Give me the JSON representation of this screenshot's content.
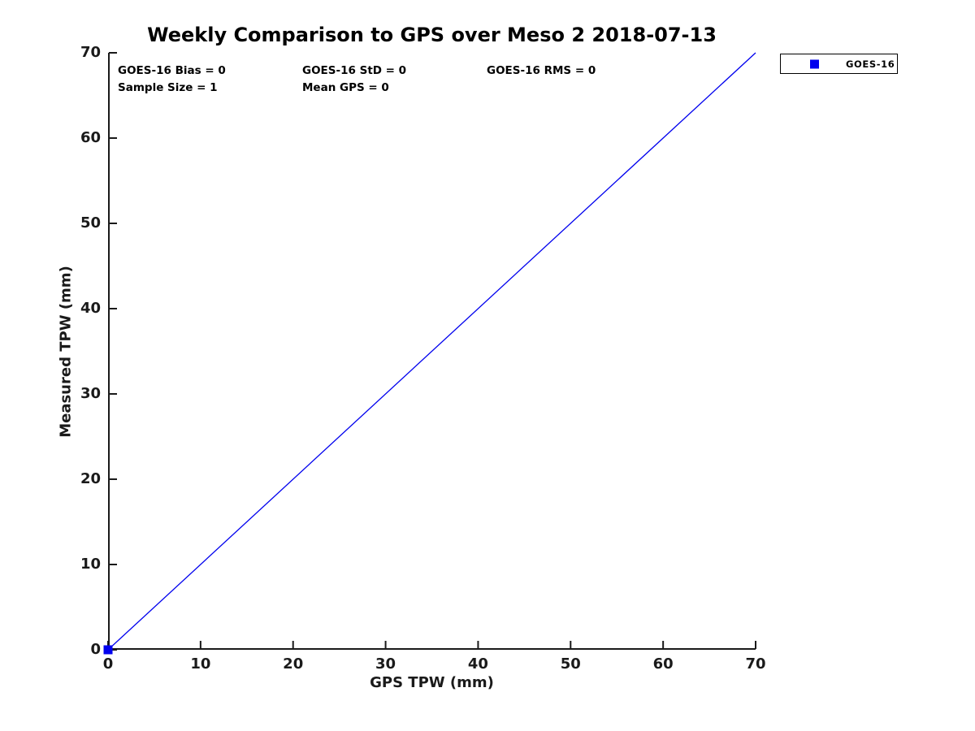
{
  "chart_data": {
    "type": "scatter",
    "title": "Weekly Comparison to GPS over Meso 2 2018-07-13",
    "xlabel": "GPS TPW (mm)",
    "ylabel": "Measured TPW (mm)",
    "xlim": [
      0,
      70
    ],
    "ylim": [
      0,
      70
    ],
    "xticks": [
      0,
      10,
      20,
      30,
      40,
      50,
      60,
      70
    ],
    "yticks": [
      0,
      10,
      20,
      30,
      40,
      50,
      60,
      70
    ],
    "grid": false,
    "axis_color": "#1a1a1a",
    "identity_line": {
      "x": [
        0,
        70
      ],
      "y": [
        0,
        70
      ],
      "color": "#0000ee",
      "width": 1.3,
      "style": "solid"
    },
    "series": [
      {
        "name": "GOES-16",
        "marker": "square",
        "color": "#0000ee",
        "marker_size": 11,
        "points": [
          {
            "x": 0,
            "y": 0
          }
        ]
      }
    ],
    "annotations": [
      {
        "text": "GOES-16 Bias = 0",
        "row": 0,
        "col": 0
      },
      {
        "text": "GOES-16 StD = 0",
        "row": 0,
        "col": 1
      },
      {
        "text": "GOES-16 RMS = 0",
        "row": 0,
        "col": 2
      },
      {
        "text": "Sample Size = 1",
        "row": 1,
        "col": 0
      },
      {
        "text": "Mean GPS = 0",
        "row": 1,
        "col": 1
      }
    ],
    "legend": {
      "position": "outside-top-right",
      "entries": [
        {
          "label": "GOES-16",
          "marker": "square",
          "color": "#0000ee"
        }
      ]
    }
  },
  "colors": {
    "background": "#ffffff",
    "line": "#0000ee",
    "axis": "#1a1a1a",
    "text": "#000000"
  }
}
